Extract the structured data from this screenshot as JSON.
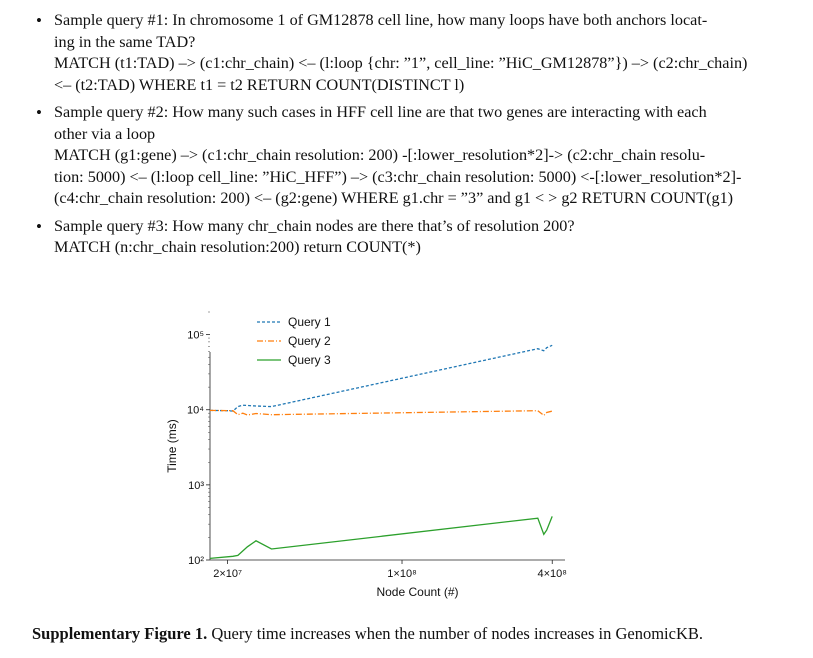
{
  "queries": [
    {
      "bullet": "•",
      "lines": [
        "Sample query #1: In chromosome 1 of GM12878 cell line, how many loops have both anchors locat-",
        "ing in the same TAD?",
        "MATCH (t1:TAD) –> (c1:chr_chain) <– (l:loop {chr: ”1”, cell_line: ”HiC_GM12878”}) –> (c2:chr_chain)",
        "<– (t2:TAD) WHERE t1 = t2 RETURN COUNT(DISTINCT l)"
      ]
    },
    {
      "bullet": "•",
      "lines": [
        "Sample query #2: How many such cases in HFF cell line are that two genes are interacting with each",
        "other via a loop",
        "MATCH (g1:gene) –> (c1:chr_chain resolution: 200) -[:lower_resolution*2]-> (c2:chr_chain resolu-",
        "tion: 5000) <– (l:loop cell_line: ”HiC_HFF”) –> (c3:chr_chain resolution: 5000) <-[:lower_resolution*2]-",
        "(c4:chr_chain resolution: 200) <– (g2:gene) WHERE g1.chr = ”3” and g1 < > g2 RETURN COUNT(g1)"
      ]
    },
    {
      "bullet": "•",
      "lines": [
        "Sample query #3: How many chr_chain nodes are there that’s of resolution 200?",
        "MATCH (n:chr_chain resolution:200) return COUNT(*)"
      ]
    }
  ],
  "chart_data": {
    "type": "line",
    "xlabel": "Node Count (#)",
    "ylabel": "Time (ms)",
    "xscale": "log",
    "yscale": "log",
    "xlim": [
      17000000,
      450000000
    ],
    "ylim": [
      100,
      200000
    ],
    "xticks": [
      {
        "value": 20000000,
        "label": "2×10⁷"
      },
      {
        "value": 100000000,
        "label": "1×10⁸"
      },
      {
        "value": 400000000,
        "label": "4×10⁸"
      }
    ],
    "yticks": [
      {
        "value": 100,
        "label": "10²"
      },
      {
        "value": 1000,
        "label": "10³"
      },
      {
        "value": 10000,
        "label": "10⁴"
      },
      {
        "value": 100000,
        "label": "10⁵"
      }
    ],
    "legend_position": "top-center",
    "series": [
      {
        "name": "Query 1",
        "color": "#1f77b4",
        "dash": "dashed",
        "x": [
          17000000,
          20000000,
          21000000,
          22000000,
          23000000,
          24000000,
          26000000,
          30000000,
          350000000,
          370000000,
          380000000,
          400000000
        ],
        "y": [
          9800,
          9700,
          9600,
          11000,
          11500,
          11400,
          11200,
          11000,
          65000,
          61000,
          67000,
          72000
        ]
      },
      {
        "name": "Query 2",
        "color": "#ff7f0e",
        "dash": "dashdot",
        "x": [
          17000000,
          21000000,
          22000000,
          23000000,
          24000000,
          26000000,
          30000000,
          350000000,
          370000000,
          380000000,
          400000000
        ],
        "y": [
          9800,
          9700,
          8600,
          9000,
          8500,
          8900,
          8600,
          9700,
          8400,
          9200,
          9600
        ]
      },
      {
        "name": "Query 3",
        "color": "#2ca02c",
        "dash": "solid",
        "x": [
          17000000,
          21000000,
          22000000,
          24000000,
          26000000,
          30000000,
          350000000,
          370000000,
          380000000,
          400000000
        ],
        "y": [
          105,
          112,
          115,
          150,
          180,
          140,
          360,
          220,
          250,
          380
        ]
      }
    ]
  },
  "caption": {
    "label": "Supplementary Figure 1.",
    "text": " Query time increases when the number of nodes increases in GenomicKB."
  }
}
